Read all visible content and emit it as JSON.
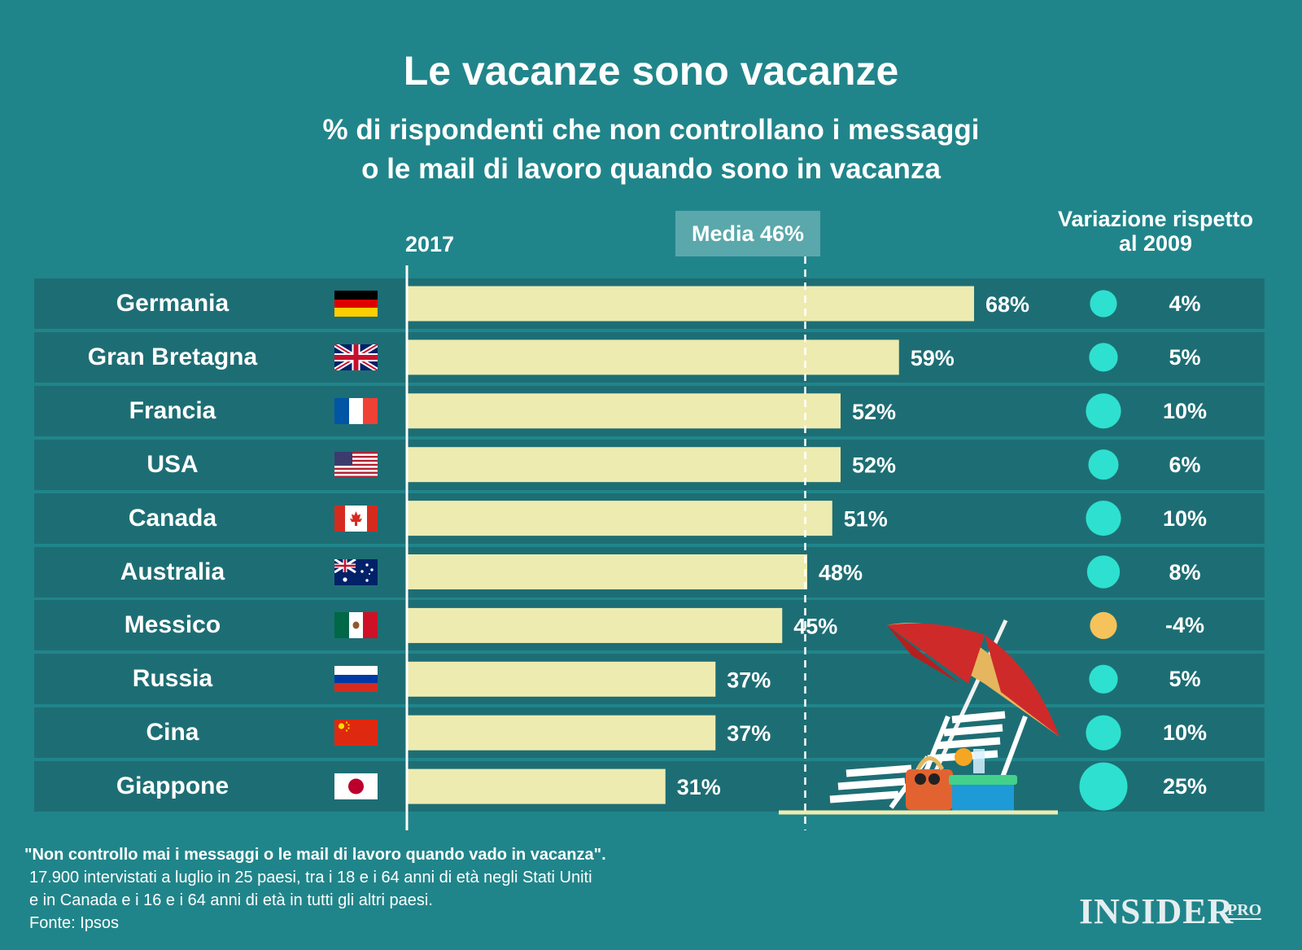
{
  "chart_data": {
    "type": "bar",
    "orientation": "horizontal",
    "title": "Le vacanze sono vacanze",
    "subtitle": [
      "% di rispondenti che non controllano i messaggi",
      "o le mail di lavoro quando sono in vacanza"
    ],
    "series_label": "2017",
    "categories": [
      "Germania",
      "Gran Bretagna",
      "Francia",
      "USA",
      "Canada",
      "Australia",
      "Messico",
      "Russia",
      "Cina",
      "Giappone"
    ],
    "values": [
      68,
      59,
      52,
      52,
      51,
      48,
      45,
      37,
      37,
      31
    ],
    "value_labels": [
      "68%",
      "59%",
      "52%",
      "52%",
      "51%",
      "48%",
      "45%",
      "37%",
      "37%",
      "31%"
    ],
    "average": {
      "label": "Media 46%",
      "value": 46
    },
    "variation": {
      "header": [
        "Variazione rispetto",
        "al 2009"
      ],
      "values": [
        4,
        5,
        10,
        6,
        10,
        8,
        -4,
        5,
        10,
        25
      ],
      "labels": [
        "4%",
        "5%",
        "10%",
        "6%",
        "10%",
        "8%",
        "-4%",
        "5%",
        "10%",
        "25%"
      ]
    },
    "colors": {
      "background": "#20858a",
      "row": "#1d6e74",
      "bar": "#eeebb0",
      "positive_dot": "#2ee0cf",
      "negative_dot": "#f6c25b",
      "average_box": "#5aa8ab"
    }
  },
  "flags": [
    "flag-germany",
    "flag-uk",
    "flag-france",
    "flag-usa",
    "flag-canada",
    "flag-australia",
    "flag-mexico",
    "flag-russia",
    "flag-china",
    "flag-japan"
  ],
  "footnote": {
    "quote": "\"Non controllo mai i messaggi o le mail di lavoro quando vado in vacanza\".",
    "lines": [
      "17.900 intervistati a luglio in 25 paesi, tra i 18 e i 64 anni di età negli Stati Uniti",
      "e in Canada e i 16 e i 64 anni di età in tutti gli altri paesi.",
      "Fonte: Ipsos"
    ]
  },
  "brand": {
    "name": "INSIDER",
    "suffix": "PRO"
  }
}
